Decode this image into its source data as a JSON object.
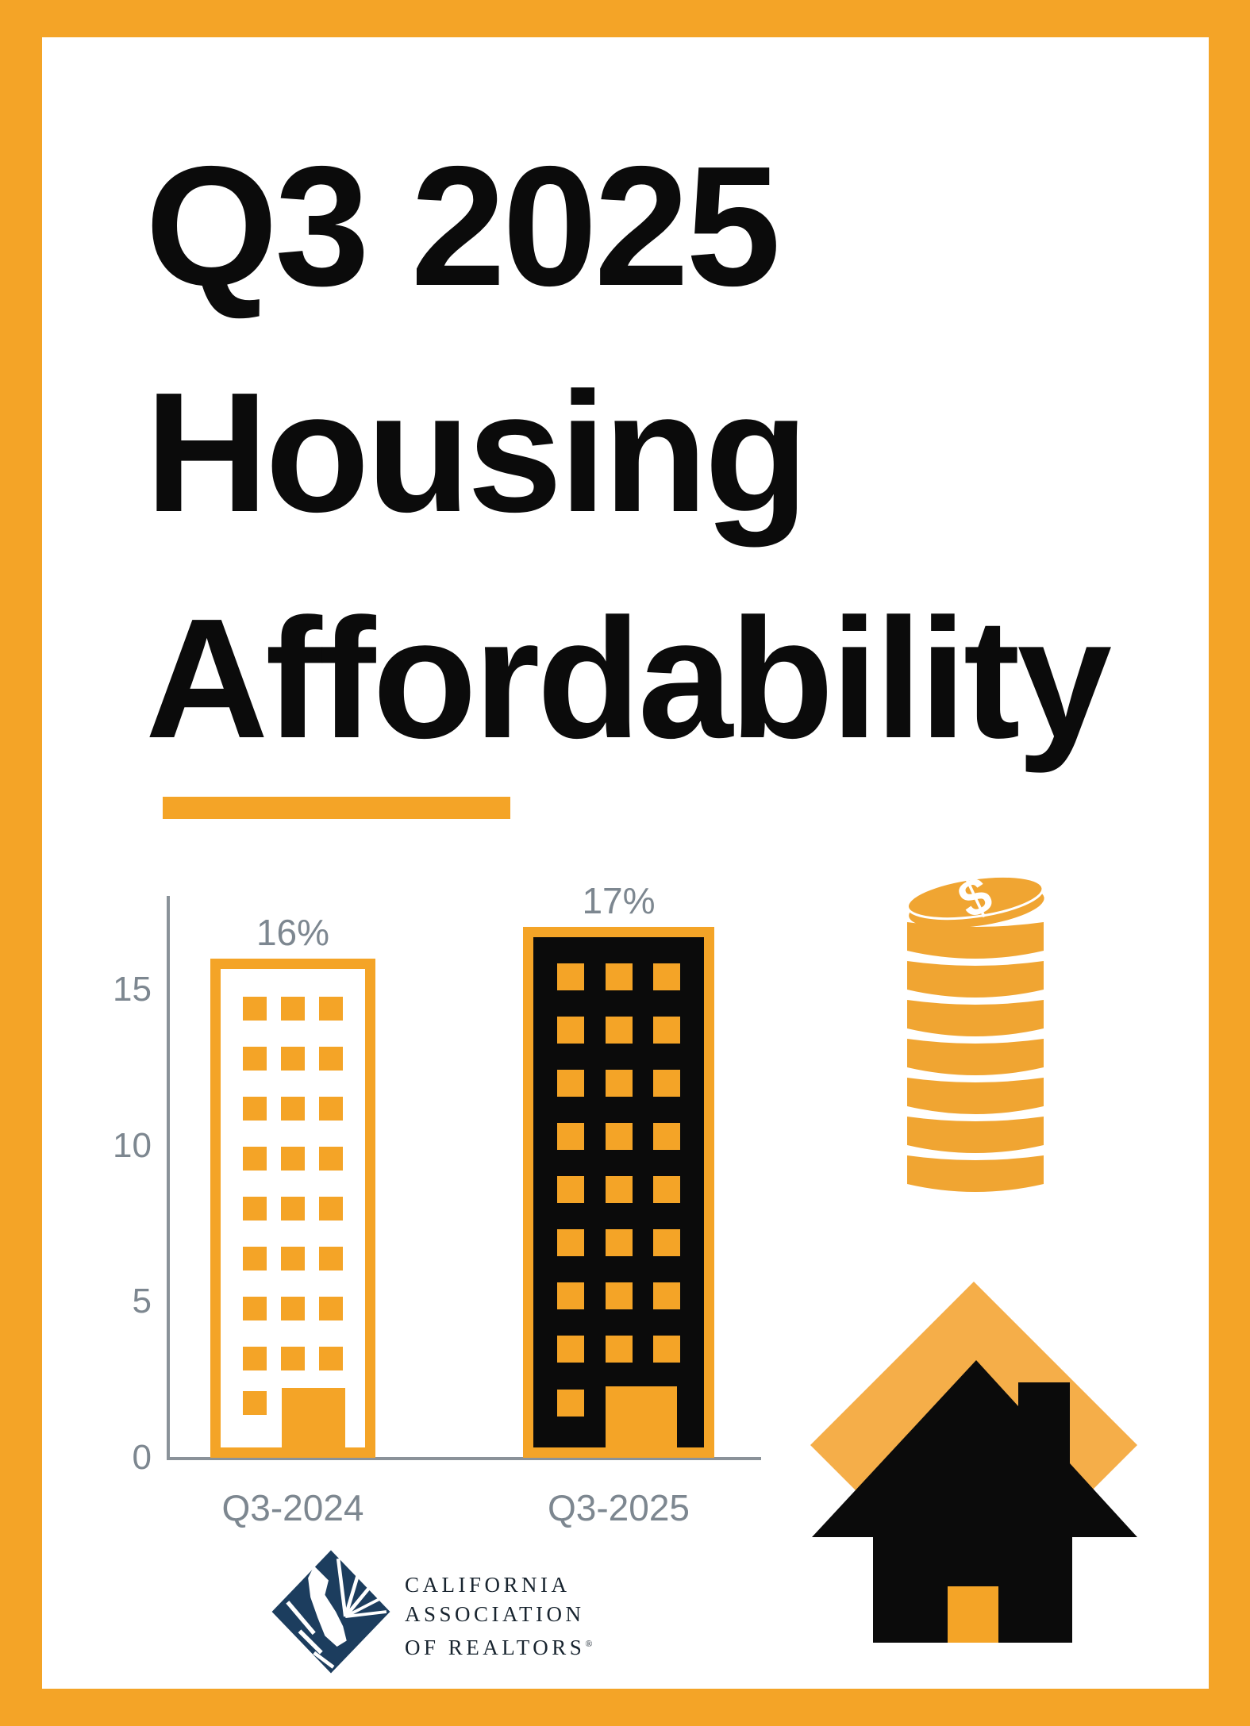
{
  "title": {
    "line1": "Q3 2025",
    "line2": "Housing",
    "line3": "Affordability"
  },
  "chart_data": {
    "type": "bar",
    "title": "",
    "categories": [
      "Q3-2024",
      "Q3-2025"
    ],
    "values": [
      16,
      17
    ],
    "value_labels": [
      "16%",
      "17%"
    ],
    "yticks": [
      0,
      5,
      10,
      15
    ],
    "ylim": [
      0,
      17.5
    ],
    "xlabel": "",
    "ylabel": "",
    "grid": false,
    "legend": false,
    "bar_styles": [
      "outline-building",
      "solid-building"
    ]
  },
  "icons": {
    "coin_stack": "coin-stack-icon",
    "dollar_sign": "$",
    "house": "house-icon"
  },
  "logo": {
    "line1": "CALIFORNIA",
    "line2": "ASSOCIATION",
    "line3": "OF REALTORS",
    "reg": "®"
  },
  "colors": {
    "orange": "#F4A427",
    "house_diamond_orange": "#F5AE49",
    "coin_orange": "#F0A532",
    "black": "#0B0B0B",
    "gray_text": "#7D8790",
    "axis_gray": "#8A9299",
    "logo_navy": "#1C3D5E",
    "logo_text": "#18242F",
    "white": "#FFFFFF"
  }
}
